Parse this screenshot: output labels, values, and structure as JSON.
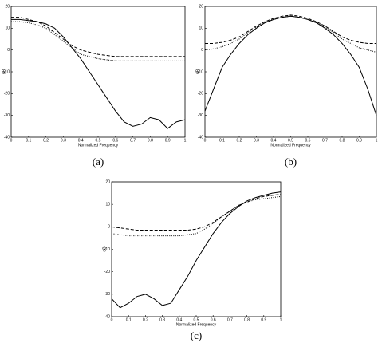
{
  "chart_data": [
    {
      "type": "line",
      "caption": "(a)",
      "xlabel": "Normalized Frequency",
      "ylabel": "dB",
      "xlim": [
        0,
        1
      ],
      "ylim": [
        -40,
        20
      ],
      "xticks": [
        0,
        0.1,
        0.2,
        0.3,
        0.4,
        0.5,
        0.6,
        0.7,
        0.8,
        0.9,
        1
      ],
      "yticks": [
        -40,
        -30,
        -20,
        -10,
        0,
        10,
        20
      ],
      "x": [
        0,
        0.05,
        0.1,
        0.15,
        0.2,
        0.25,
        0.3,
        0.35,
        0.4,
        0.45,
        0.5,
        0.55,
        0.6,
        0.65,
        0.7,
        0.75,
        0.8,
        0.85,
        0.9,
        0.95,
        1
      ],
      "series": [
        {
          "color": "#000000",
          "style": "solid",
          "values": [
            14,
            14,
            13.5,
            13,
            12,
            10,
            6,
            1,
            -4,
            -10,
            -16,
            -22,
            -28,
            -33,
            -35,
            -34,
            -31,
            -32,
            -36,
            -33,
            -32
          ]
        },
        {
          "color": "#000000",
          "style": "dashed",
          "values": [
            15,
            15,
            14,
            13,
            11,
            8,
            5,
            2,
            0,
            -1,
            -2,
            -2.5,
            -3,
            -3,
            -3,
            -3,
            -3,
            -3,
            -3,
            -3,
            -3
          ]
        },
        {
          "color": "#000000",
          "style": "dotted",
          "values": [
            13,
            13,
            12.5,
            11.5,
            10,
            7,
            4,
            1,
            -2,
            -3,
            -4,
            -4.5,
            -5,
            -5,
            -5,
            -5,
            -5,
            -5,
            -5,
            -5,
            -5
          ]
        }
      ]
    },
    {
      "type": "line",
      "caption": "(b)",
      "xlabel": "Normalized Frequency",
      "ylabel": "dB",
      "xlim": [
        0,
        1
      ],
      "ylim": [
        -40,
        20
      ],
      "xticks": [
        0,
        0.1,
        0.2,
        0.3,
        0.4,
        0.5,
        0.6,
        0.7,
        0.8,
        0.9,
        1
      ],
      "yticks": [
        -40,
        -30,
        -20,
        -10,
        0,
        10,
        20
      ],
      "x": [
        0,
        0.05,
        0.1,
        0.15,
        0.2,
        0.25,
        0.3,
        0.35,
        0.4,
        0.45,
        0.5,
        0.55,
        0.6,
        0.65,
        0.7,
        0.75,
        0.8,
        0.85,
        0.9,
        0.95,
        1
      ],
      "series": [
        {
          "color": "#000000",
          "style": "solid",
          "values": [
            -28,
            -18,
            -8,
            -2,
            3,
            7,
            10,
            12.5,
            14,
            15,
            15.5,
            15,
            14,
            12.5,
            10,
            7,
            3,
            -2,
            -8,
            -18,
            -30
          ]
        },
        {
          "color": "#000000",
          "style": "dashed",
          "values": [
            3,
            3,
            3.5,
            4.5,
            6,
            8.5,
            11,
            13,
            14.5,
            15.5,
            16,
            15.5,
            14.5,
            13,
            11,
            8.5,
            6,
            4.5,
            3.5,
            3,
            3
          ]
        },
        {
          "color": "#000000",
          "style": "dotted",
          "values": [
            0,
            0.5,
            1.5,
            3,
            5,
            8,
            10.5,
            12.5,
            14,
            15,
            15.5,
            15,
            14,
            12.5,
            10.5,
            8,
            5,
            3,
            1,
            0,
            -1
          ]
        }
      ]
    },
    {
      "type": "line",
      "caption": "(c)",
      "xlabel": "Normalized Frequency",
      "ylabel": "dB",
      "xlim": [
        0,
        1
      ],
      "ylim": [
        -40,
        20
      ],
      "xticks": [
        0,
        0.1,
        0.2,
        0.3,
        0.4,
        0.5,
        0.6,
        0.7,
        0.8,
        0.9,
        1
      ],
      "yticks": [
        -40,
        -30,
        -20,
        -10,
        0,
        10,
        20
      ],
      "x": [
        0,
        0.05,
        0.1,
        0.15,
        0.2,
        0.25,
        0.3,
        0.35,
        0.4,
        0.45,
        0.5,
        0.55,
        0.6,
        0.65,
        0.7,
        0.75,
        0.8,
        0.85,
        0.9,
        0.95,
        1
      ],
      "series": [
        {
          "color": "#000000",
          "style": "solid",
          "values": [
            -32,
            -36,
            -34,
            -31,
            -30,
            -32,
            -35,
            -34,
            -28,
            -22,
            -15,
            -9,
            -3,
            2,
            6,
            9,
            11.5,
            13,
            14,
            15,
            15.5
          ]
        },
        {
          "color": "#000000",
          "style": "dashed",
          "values": [
            0,
            -0.5,
            -1,
            -1.5,
            -1.5,
            -1.5,
            -1.5,
            -1.5,
            -1.5,
            -1.5,
            -1,
            0,
            2,
            4.5,
            7,
            9.5,
            11,
            12.5,
            13.5,
            14,
            14.5
          ]
        },
        {
          "color": "#000000",
          "style": "dotted",
          "values": [
            -3,
            -3.5,
            -4,
            -4,
            -4,
            -4,
            -4,
            -4,
            -4,
            -3.5,
            -3,
            -1,
            1.5,
            4.5,
            7,
            9.5,
            11,
            12,
            12.5,
            13,
            13.5
          ]
        }
      ]
    }
  ]
}
